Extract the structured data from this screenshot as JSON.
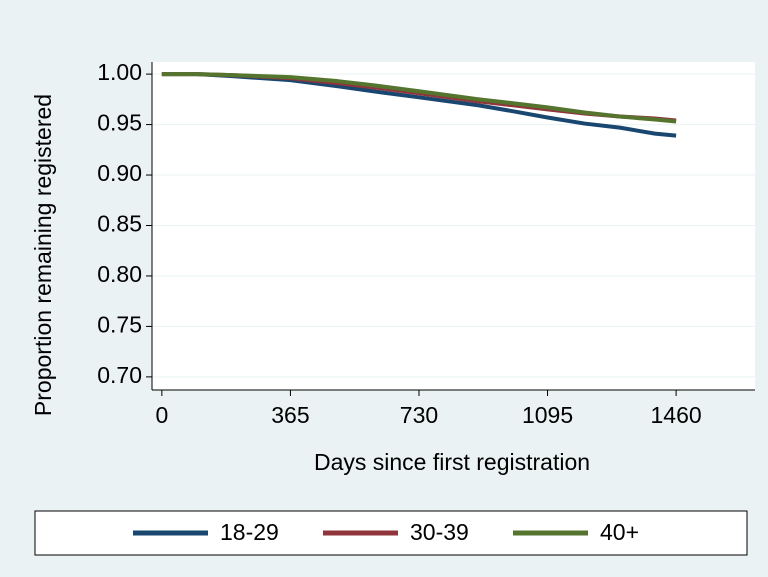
{
  "chart_data": {
    "type": "line",
    "xlabel": "Days since first registration",
    "ylabel": "Proportion remaining registered",
    "x": [
      0,
      100,
      200,
      365,
      500,
      600,
      730,
      900,
      1000,
      1095,
      1200,
      1300,
      1400,
      1460
    ],
    "series": [
      {
        "name": "18-29",
        "color": "#1a476f",
        "values": [
          1,
          1,
          0.998,
          0.994,
          0.988,
          0.983,
          0.977,
          0.969,
          0.963,
          0.957,
          0.951,
          0.947,
          0.941,
          0.939
        ]
      },
      {
        "name": "30-39",
        "color": "#90353b",
        "values": [
          1,
          1,
          0.999,
          0.996,
          0.991,
          0.987,
          0.981,
          0.973,
          0.969,
          0.965,
          0.961,
          0.958,
          0.956,
          0.954
        ]
      },
      {
        "name": "40+",
        "color": "#55752f",
        "values": [
          1,
          1,
          0.999,
          0.997,
          0.993,
          0.989,
          0.983,
          0.975,
          0.971,
          0.967,
          0.962,
          0.958,
          0.955,
          0.953
        ]
      }
    ],
    "xlim": [
      -28,
      1684
    ],
    "xticks": [
      0,
      365,
      730,
      1095,
      1460
    ],
    "ylim": [
      0.687,
      1.012
    ],
    "yticks": [
      {
        "value": 0.7,
        "label": "0.70"
      },
      0.75,
      {
        "value": 0.8,
        "label": "0.80"
      },
      0.85,
      {
        "value": 0.9,
        "label": "0.90"
      },
      0.95,
      {
        "value": 1,
        "label": "1.00"
      }
    ],
    "grid": true,
    "legend": "bottom"
  }
}
